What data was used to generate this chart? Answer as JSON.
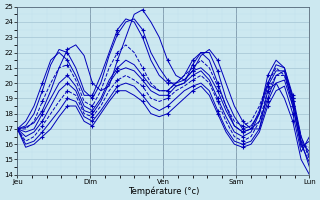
{
  "xlabel": "Température (°c)",
  "bg_color": "#cce8f0",
  "grid_major_color": "#99bbcc",
  "grid_minor_color": "#bbddee",
  "line_color": "#0000bb",
  "ylim": [
    14,
    25
  ],
  "yticks": [
    14,
    15,
    16,
    17,
    18,
    19,
    20,
    21,
    22,
    23,
    24,
    25
  ],
  "day_labels": [
    "Jeu",
    "Dim",
    "Ven",
    "Sam",
    "Lun"
  ],
  "day_positions": [
    0,
    0.25,
    0.5,
    0.75,
    1.0
  ],
  "num_points": 36,
  "series": [
    {
      "y": [
        17.0,
        17.1,
        17.4,
        18.2,
        19.5,
        21.0,
        22.2,
        22.5,
        21.8,
        20.0,
        19.5,
        19.8,
        21.5,
        23.0,
        24.5,
        24.8,
        24.0,
        23.0,
        21.5,
        20.5,
        20.2,
        20.8,
        21.8,
        22.2,
        21.5,
        20.0,
        18.5,
        17.5,
        17.0,
        17.0,
        19.5,
        20.0,
        19.0,
        17.5,
        15.0,
        14.0
      ],
      "dashed": false
    },
    {
      "y": [
        17.0,
        17.2,
        18.0,
        19.5,
        21.2,
        22.2,
        22.0,
        21.0,
        19.5,
        19.0,
        20.0,
        21.8,
        23.2,
        24.0,
        24.2,
        23.5,
        22.0,
        21.0,
        20.2,
        19.8,
        20.0,
        21.2,
        22.0,
        22.0,
        20.8,
        19.0,
        17.8,
        17.0,
        17.2,
        18.0,
        20.5,
        21.5,
        21.0,
        19.0,
        16.2,
        14.5
      ],
      "dashed": false
    },
    {
      "y": [
        17.0,
        17.5,
        18.5,
        20.0,
        21.5,
        22.0,
        21.5,
        20.5,
        19.2,
        19.2,
        20.5,
        22.0,
        23.5,
        24.2,
        24.0,
        23.0,
        21.5,
        20.5,
        20.0,
        20.0,
        20.5,
        21.5,
        22.0,
        21.5,
        20.0,
        18.5,
        17.2,
        16.8,
        17.0,
        17.5,
        19.0,
        20.5,
        20.8,
        18.5,
        16.0,
        14.8
      ],
      "dashed": false
    },
    {
      "y": [
        17.0,
        17.0,
        17.5,
        18.8,
        20.0,
        21.0,
        21.2,
        20.2,
        18.8,
        18.5,
        19.5,
        21.0,
        22.0,
        22.5,
        22.0,
        21.0,
        20.0,
        19.5,
        19.5,
        20.0,
        20.5,
        21.0,
        21.5,
        21.0,
        19.8,
        18.5,
        17.5,
        17.2,
        17.5,
        18.5,
        20.0,
        21.0,
        20.5,
        18.8,
        16.5,
        15.0
      ],
      "dashed": true
    },
    {
      "y": [
        17.0,
        16.8,
        17.0,
        18.0,
        19.0,
        20.0,
        20.5,
        19.8,
        18.5,
        18.2,
        19.0,
        20.2,
        21.0,
        21.5,
        21.2,
        20.5,
        19.8,
        19.5,
        19.5,
        20.0,
        20.2,
        20.8,
        21.0,
        20.5,
        19.5,
        18.2,
        17.2,
        16.8,
        17.0,
        18.2,
        20.0,
        21.2,
        21.0,
        19.2,
        16.5,
        15.2
      ],
      "dashed": false
    },
    {
      "y": [
        17.0,
        16.5,
        16.8,
        17.5,
        18.5,
        19.5,
        20.0,
        19.5,
        18.2,
        18.0,
        18.8,
        20.0,
        20.8,
        21.0,
        20.8,
        20.2,
        19.5,
        19.2,
        19.2,
        19.8,
        20.0,
        20.5,
        20.8,
        20.2,
        19.0,
        17.8,
        16.8,
        16.5,
        16.8,
        18.0,
        19.8,
        20.8,
        20.8,
        19.0,
        16.2,
        15.5
      ],
      "dashed": false
    },
    {
      "y": [
        17.0,
        16.2,
        16.5,
        17.2,
        18.0,
        18.8,
        19.5,
        19.2,
        18.0,
        17.8,
        18.5,
        19.5,
        20.2,
        20.5,
        20.2,
        19.8,
        19.0,
        18.8,
        19.0,
        19.5,
        19.8,
        20.2,
        20.5,
        20.0,
        18.8,
        17.5,
        16.5,
        16.2,
        16.5,
        17.5,
        19.5,
        20.5,
        20.5,
        18.8,
        16.0,
        15.8
      ],
      "dashed": true
    },
    {
      "y": [
        17.0,
        16.0,
        16.2,
        16.8,
        17.5,
        18.2,
        19.0,
        18.8,
        17.8,
        17.5,
        18.2,
        19.0,
        19.8,
        20.0,
        19.8,
        19.2,
        18.5,
        18.2,
        18.5,
        19.0,
        19.5,
        19.8,
        20.0,
        19.5,
        18.2,
        17.0,
        16.2,
        16.0,
        16.2,
        17.0,
        18.8,
        20.0,
        20.2,
        18.5,
        15.8,
        16.2
      ],
      "dashed": false
    },
    {
      "y": [
        17.0,
        15.8,
        16.0,
        16.5,
        17.0,
        17.8,
        18.5,
        18.5,
        17.5,
        17.2,
        18.0,
        18.8,
        19.5,
        19.5,
        19.2,
        18.8,
        18.0,
        17.8,
        18.0,
        18.5,
        19.0,
        19.5,
        19.8,
        19.2,
        18.0,
        16.8,
        16.0,
        15.8,
        16.0,
        16.8,
        18.5,
        19.5,
        19.8,
        18.0,
        15.5,
        16.5
      ],
      "dashed": false
    }
  ]
}
